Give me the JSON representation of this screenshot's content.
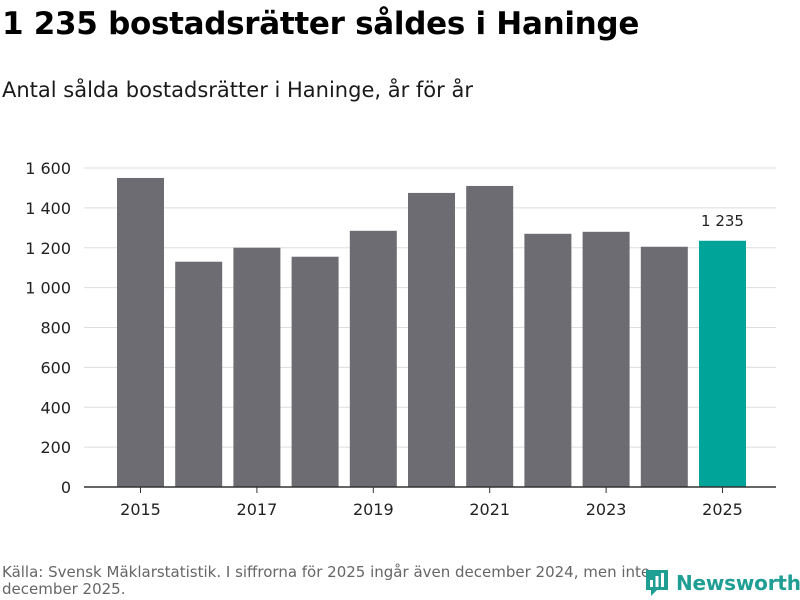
{
  "header": {
    "title": "1 235 bostadsrätter såldes i Haninge",
    "subtitle": "Antal sålda bostadsrätter i Haninge, år för år"
  },
  "footer": {
    "source": "Källa: Svensk Mäklarstatistik. I siffrorna för 2025 ingår även december 2024, men inte december 2025.",
    "brand": "Newsworthy",
    "brand_icon": "newsworthy-logo-icon"
  },
  "colors": {
    "bar": "#6d6c72",
    "highlight": "#00a499",
    "grid": "#dddddd",
    "brand": "#1f9e94"
  },
  "chart_data": {
    "type": "bar",
    "title": "1 235 bostadsrätter såldes i Haninge",
    "subtitle": "Antal sålda bostadsrätter i Haninge, år för år",
    "xlabel": "",
    "ylabel": "",
    "categories": [
      "2015",
      "2016",
      "2017",
      "2018",
      "2019",
      "2020",
      "2021",
      "2022",
      "2023",
      "2024",
      "2025"
    ],
    "values": [
      1550,
      1130,
      1200,
      1155,
      1285,
      1475,
      1510,
      1270,
      1280,
      1205,
      1235
    ],
    "x_tick_labels": [
      "2015",
      "",
      "2017",
      "",
      "2019",
      "",
      "2021",
      "",
      "2023",
      "",
      "2025"
    ],
    "y_ticks": [
      0,
      200,
      400,
      600,
      800,
      1000,
      1200,
      1400,
      1600
    ],
    "y_tick_labels": [
      "0",
      "200",
      "400",
      "600",
      "800",
      "1 000",
      "1 200",
      "1 400",
      "1 600"
    ],
    "ylim": [
      0,
      1600
    ],
    "grid": true,
    "highlight_index": 10,
    "annotation": {
      "index": 10,
      "text": "1 235"
    }
  }
}
